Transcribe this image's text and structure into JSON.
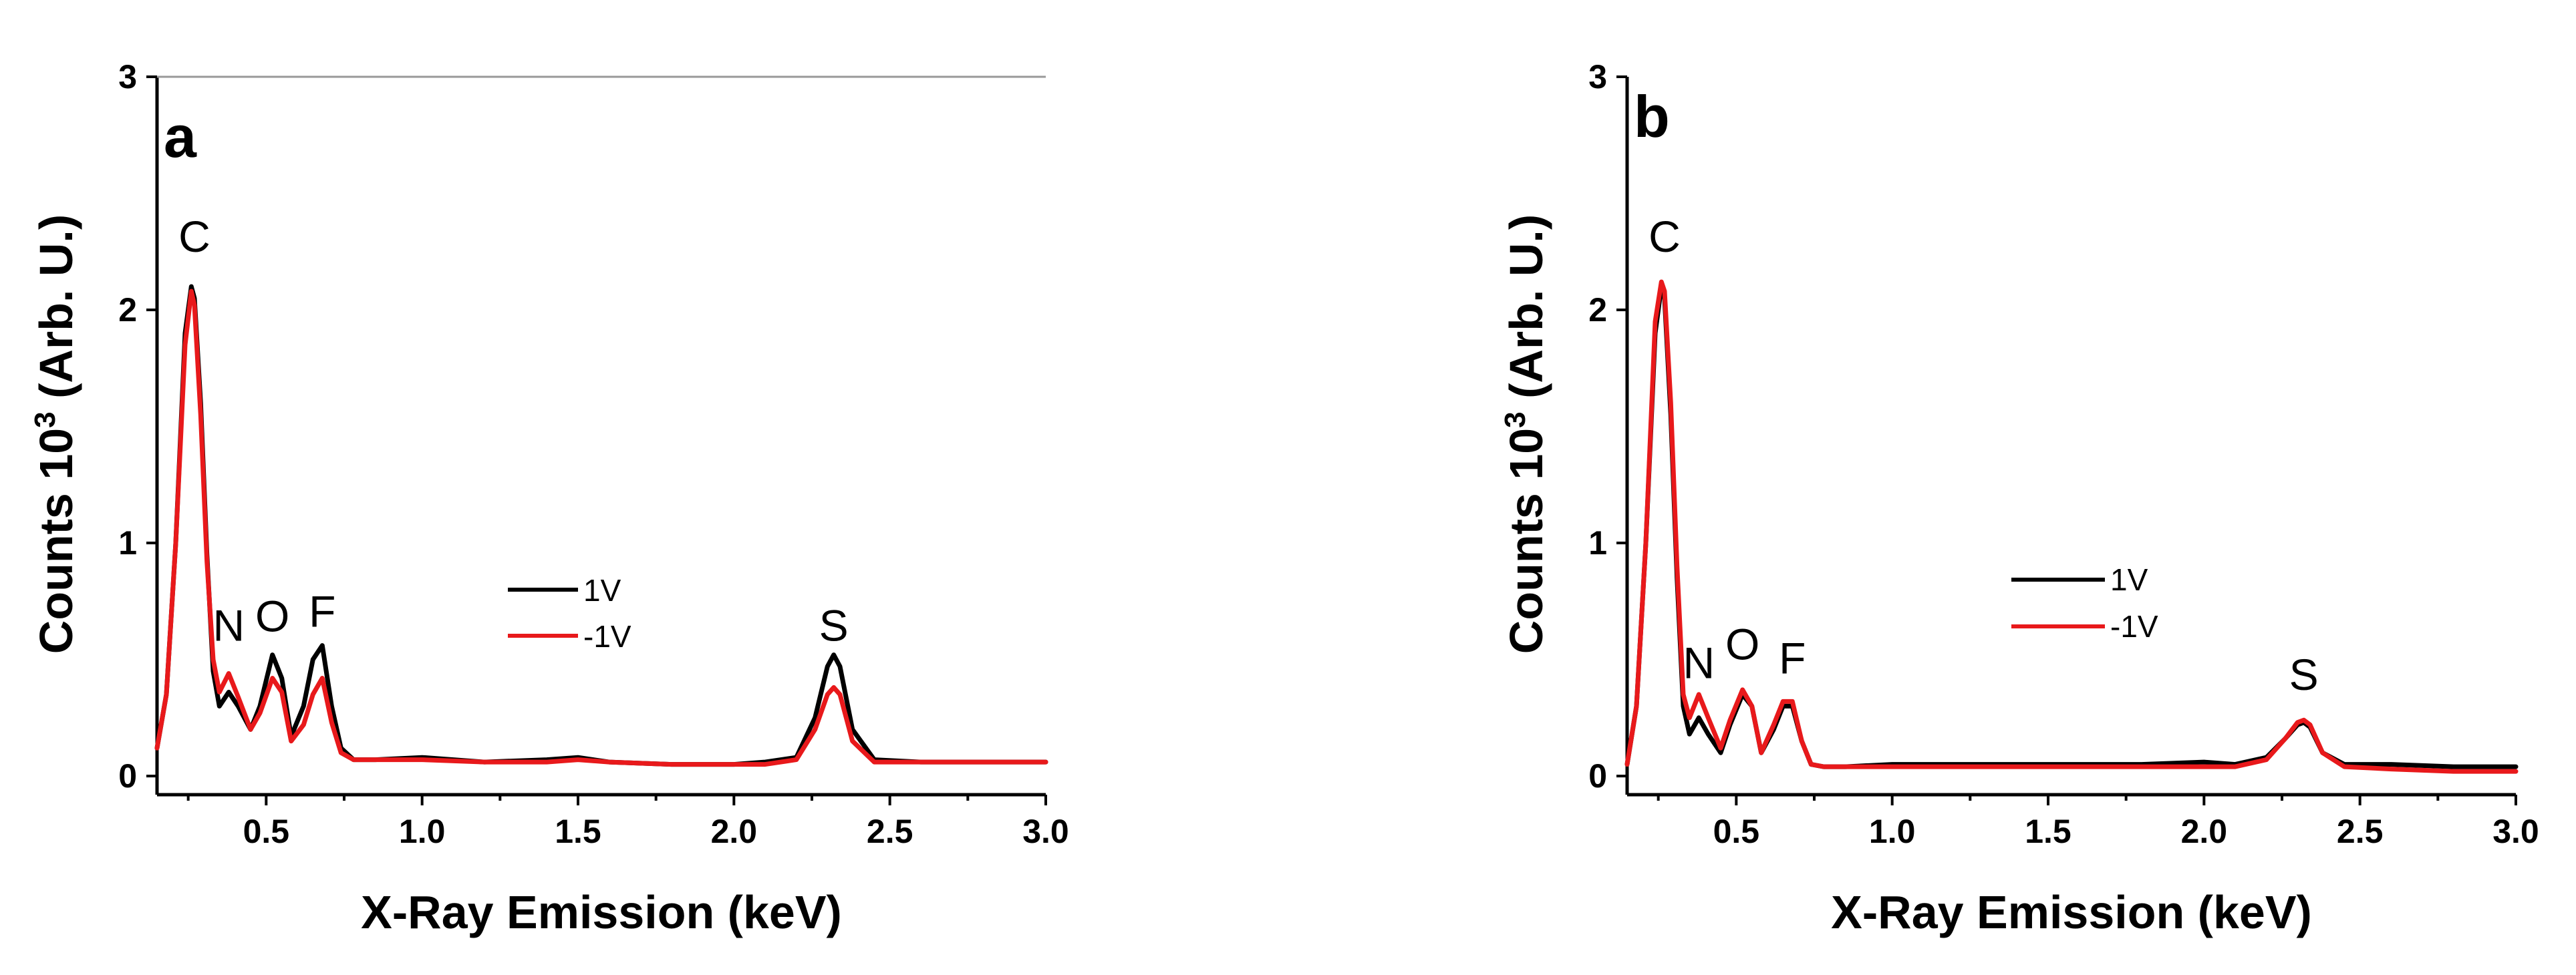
{
  "colors": {
    "series_1V": "#000000",
    "series_minus1V": "#e8191b"
  },
  "chart_data": [
    {
      "type": "line",
      "panel": "a",
      "xlabel": "X-Ray Emission (keV)",
      "ylabel": "Counts 10",
      "ylabel_sup": "3",
      "ylabel_unit": " (Arb. U.)",
      "xlim": [
        0.15,
        3.0
      ],
      "ylim": [
        -0.08,
        3.0
      ],
      "xticks": [
        "0.5",
        "1.0",
        "1.5",
        "2.0",
        "2.5",
        "3.0"
      ],
      "yticks": [
        "0",
        "1",
        "2",
        "3"
      ],
      "legend_position": "center",
      "peak_labels": [
        {
          "text": "C",
          "x": 0.27,
          "y": 2.25
        },
        {
          "text": "N",
          "x": 0.38,
          "y": 0.58
        },
        {
          "text": "O",
          "x": 0.52,
          "y": 0.62
        },
        {
          "text": "F",
          "x": 0.68,
          "y": 0.64
        },
        {
          "text": "S",
          "x": 2.32,
          "y": 0.58
        }
      ],
      "series": [
        {
          "name": "1V",
          "x": [
            0.15,
            0.18,
            0.21,
            0.24,
            0.26,
            0.27,
            0.29,
            0.31,
            0.33,
            0.35,
            0.38,
            0.41,
            0.45,
            0.48,
            0.52,
            0.55,
            0.58,
            0.62,
            0.65,
            0.68,
            0.71,
            0.74,
            0.78,
            0.85,
            1.0,
            1.2,
            1.4,
            1.5,
            1.6,
            1.8,
            2.0,
            2.1,
            2.2,
            2.26,
            2.3,
            2.32,
            2.34,
            2.38,
            2.45,
            2.6,
            2.8,
            3.0
          ],
          "y": [
            0.12,
            0.35,
            1.0,
            1.9,
            2.1,
            2.05,
            1.6,
            0.95,
            0.45,
            0.3,
            0.36,
            0.3,
            0.2,
            0.3,
            0.52,
            0.42,
            0.17,
            0.3,
            0.5,
            0.56,
            0.3,
            0.12,
            0.07,
            0.07,
            0.08,
            0.06,
            0.07,
            0.08,
            0.06,
            0.05,
            0.05,
            0.06,
            0.08,
            0.25,
            0.47,
            0.52,
            0.47,
            0.2,
            0.07,
            0.06,
            0.06,
            0.06
          ]
        },
        {
          "name": "-1V",
          "x": [
            0.15,
            0.18,
            0.21,
            0.24,
            0.26,
            0.27,
            0.29,
            0.31,
            0.33,
            0.35,
            0.38,
            0.41,
            0.45,
            0.48,
            0.52,
            0.55,
            0.58,
            0.62,
            0.65,
            0.68,
            0.71,
            0.74,
            0.78,
            0.85,
            1.0,
            1.2,
            1.4,
            1.5,
            1.6,
            1.8,
            2.0,
            2.1,
            2.2,
            2.26,
            2.3,
            2.32,
            2.34,
            2.38,
            2.45,
            2.6,
            2.8,
            3.0
          ],
          "y": [
            0.12,
            0.35,
            1.0,
            1.85,
            2.08,
            2.02,
            1.55,
            0.92,
            0.5,
            0.36,
            0.44,
            0.34,
            0.2,
            0.27,
            0.42,
            0.36,
            0.15,
            0.22,
            0.35,
            0.42,
            0.23,
            0.1,
            0.07,
            0.07,
            0.07,
            0.06,
            0.06,
            0.07,
            0.06,
            0.05,
            0.05,
            0.05,
            0.07,
            0.2,
            0.35,
            0.38,
            0.35,
            0.15,
            0.06,
            0.06,
            0.06,
            0.06
          ]
        }
      ]
    },
    {
      "type": "line",
      "panel": "b",
      "xlabel": "X-Ray Emission (keV)",
      "ylabel": "Counts 10",
      "ylabel_sup": "3",
      "ylabel_unit": " (Arb. U.)",
      "xlim": [
        0.15,
        3.0
      ],
      "ylim": [
        -0.08,
        3.0
      ],
      "xticks": [
        "0.5",
        "1.0",
        "1.5",
        "2.0",
        "2.5",
        "3.0"
      ],
      "yticks": [
        "0",
        "1",
        "2",
        "3"
      ],
      "legend_position": "center",
      "peak_labels": [
        {
          "text": "C",
          "x": 0.27,
          "y": 2.25
        },
        {
          "text": "N",
          "x": 0.38,
          "y": 0.42
        },
        {
          "text": "O",
          "x": 0.52,
          "y": 0.5
        },
        {
          "text": "F",
          "x": 0.68,
          "y": 0.44
        },
        {
          "text": "S",
          "x": 2.32,
          "y": 0.37
        }
      ],
      "series": [
        {
          "name": "1V",
          "x": [
            0.15,
            0.18,
            0.21,
            0.24,
            0.26,
            0.27,
            0.29,
            0.31,
            0.33,
            0.35,
            0.38,
            0.41,
            0.45,
            0.48,
            0.52,
            0.55,
            0.58,
            0.62,
            0.65,
            0.68,
            0.71,
            0.74,
            0.78,
            0.85,
            1.0,
            1.2,
            1.4,
            1.6,
            1.8,
            2.0,
            2.1,
            2.2,
            2.26,
            2.3,
            2.32,
            2.34,
            2.38,
            2.45,
            2.6,
            2.8,
            3.0
          ],
          "y": [
            0.05,
            0.3,
            1.0,
            1.9,
            2.1,
            2.05,
            1.55,
            0.85,
            0.3,
            0.18,
            0.25,
            0.18,
            0.1,
            0.22,
            0.35,
            0.3,
            0.1,
            0.2,
            0.3,
            0.3,
            0.15,
            0.05,
            0.04,
            0.04,
            0.05,
            0.05,
            0.05,
            0.05,
            0.05,
            0.06,
            0.05,
            0.08,
            0.16,
            0.22,
            0.23,
            0.21,
            0.1,
            0.05,
            0.05,
            0.04,
            0.04
          ]
        },
        {
          "name": "-1V",
          "x": [
            0.15,
            0.18,
            0.21,
            0.24,
            0.26,
            0.27,
            0.29,
            0.31,
            0.33,
            0.35,
            0.38,
            0.41,
            0.45,
            0.48,
            0.52,
            0.55,
            0.58,
            0.62,
            0.65,
            0.68,
            0.71,
            0.74,
            0.78,
            0.85,
            1.0,
            1.2,
            1.4,
            1.6,
            1.8,
            2.0,
            2.1,
            2.2,
            2.26,
            2.3,
            2.32,
            2.34,
            2.38,
            2.45,
            2.6,
            2.8,
            3.0
          ],
          "y": [
            0.05,
            0.3,
            1.0,
            1.95,
            2.12,
            2.08,
            1.6,
            0.9,
            0.35,
            0.25,
            0.35,
            0.25,
            0.12,
            0.24,
            0.37,
            0.3,
            0.1,
            0.22,
            0.32,
            0.32,
            0.15,
            0.05,
            0.04,
            0.04,
            0.04,
            0.04,
            0.04,
            0.04,
            0.04,
            0.04,
            0.04,
            0.07,
            0.16,
            0.23,
            0.24,
            0.22,
            0.1,
            0.04,
            0.03,
            0.02,
            0.02
          ]
        }
      ]
    }
  ]
}
